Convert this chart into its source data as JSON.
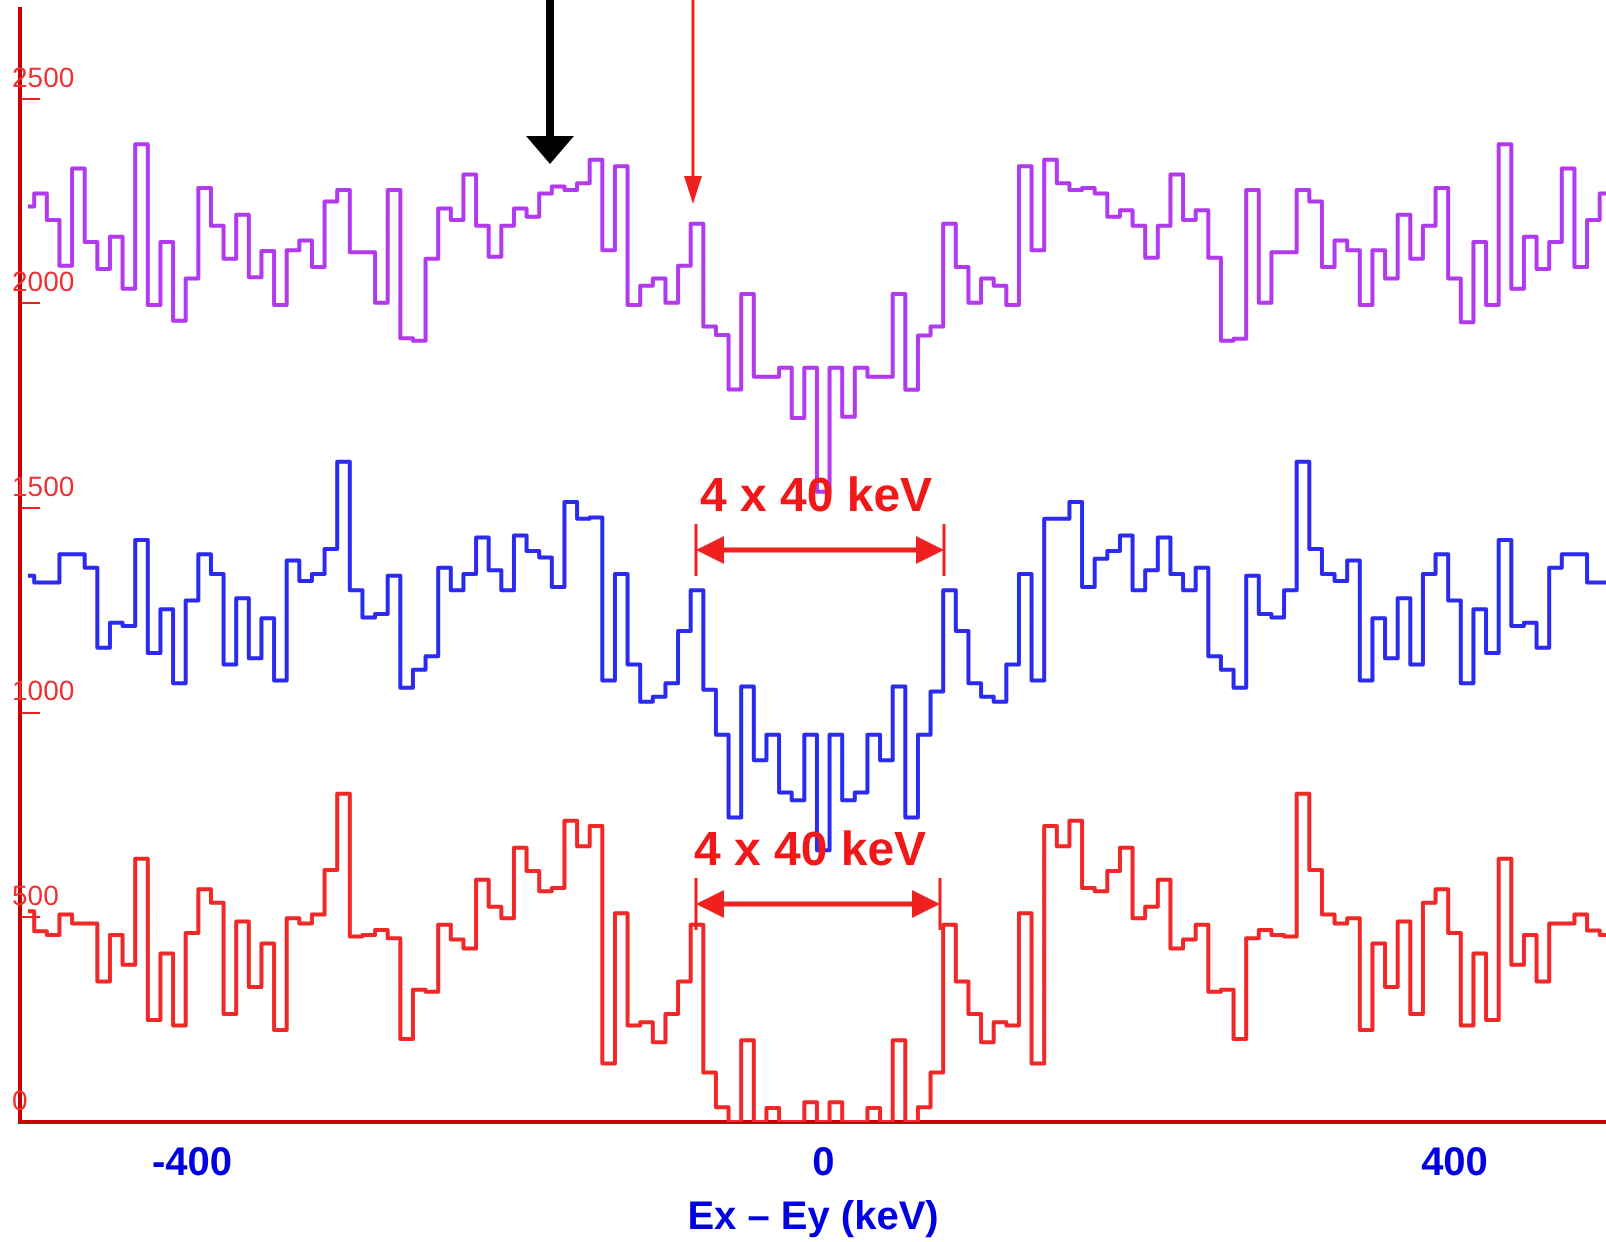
{
  "chart_data": {
    "type": "step",
    "xlabel": "Ex – Ey (keV)",
    "x": [
      -504,
      -496,
      -488,
      -480,
      -472,
      -464,
      -456,
      -448,
      -440,
      -432,
      -424,
      -416,
      -408,
      -400,
      -392,
      -384,
      -376,
      -368,
      -360,
      -352,
      -344,
      -336,
      -328,
      -320,
      -312,
      -304,
      -296,
      -288,
      -280,
      -272,
      -264,
      -256,
      -248,
      -240,
      -232,
      -224,
      -216,
      -208,
      -200,
      -192,
      -184,
      -176,
      -168,
      -160,
      -152,
      -144,
      -136,
      -128,
      -120,
      -112,
      -104,
      -96,
      -88,
      -80,
      -72,
      -64,
      -56,
      -48,
      -40,
      -32,
      -24,
      -16,
      -8,
      0,
      8,
      16,
      24,
      32,
      40,
      48,
      56,
      64,
      72,
      80,
      88,
      96,
      104,
      112,
      120,
      128,
      136,
      144,
      152,
      160,
      168,
      176,
      184,
      192,
      200,
      208,
      216,
      224,
      232,
      240,
      248,
      256,
      264,
      272,
      280,
      288,
      296,
      304,
      312,
      320,
      328,
      336,
      344,
      352,
      360,
      368,
      376,
      384,
      392,
      400,
      408,
      416,
      424,
      432,
      440,
      448,
      456,
      464,
      472,
      480,
      488,
      496
    ],
    "series": [
      {
        "color": "#b23aee",
        "values": [
          2237,
          2269,
          2204,
          2092,
          2330,
          2150,
          2084,
          2163,
          2036,
          2389,
          1996,
          2150,
          1958,
          2061,
          2282,
          2190,
          2109,
          2217,
          2064,
          2128,
          1996,
          2130,
          2154,
          2089,
          2249,
          2277,
          2125,
          2125,
          2002,
          2277,
          1915,
          1909,
          2109,
          2232,
          2204,
          2315,
          2190,
          2114,
          2190,
          2232,
          2212,
          2269,
          2286,
          2277,
          2294,
          2351,
          2130,
          2335,
          1996,
          2043,
          2061,
          2002,
          2092,
          2195,
          1944,
          1923,
          1790,
          2023,
          1821,
          1821,
          1843,
          1720,
          1843,
          1540,
          1843,
          1723,
          1843,
          1821,
          1821,
          2023,
          1789,
          1922,
          1944,
          2195,
          2089,
          2002,
          2061,
          2043,
          1996,
          2335,
          2130,
          2351,
          2294,
          2277,
          2282,
          2269,
          2212,
          2228,
          2190,
          2112,
          2190,
          2315,
          2204,
          2228,
          2112,
          1909,
          1914,
          2277,
          2002,
          2125,
          2125,
          2277,
          2249,
          2089,
          2154,
          2130,
          1996,
          2130,
          2061,
          2217,
          2109,
          2190,
          2282,
          2061,
          1954,
          2150,
          1996,
          2389,
          2036,
          2163,
          2084,
          2150,
          2330,
          2089,
          2204,
          2269
        ]
      },
      {
        "color": "#2b2bf0",
        "values": [
          1335,
          1318,
          1318,
          1387,
          1387,
          1354,
          1159,
          1220,
          1212,
          1422,
          1146,
          1253,
          1072,
          1274,
          1387,
          1339,
          1118,
          1280,
          1133,
          1231,
          1079,
          1372,
          1322,
          1339,
          1400,
          1613,
          1299,
          1233,
          1241,
          1335,
          1061,
          1105,
          1138,
          1354,
          1299,
          1339,
          1428,
          1348,
          1299,
          1433,
          1395,
          1379,
          1307,
          1515,
          1474,
          1477,
          1079,
          1339,
          1118,
          1027,
          1039,
          1072,
          1200,
          1299,
          1056,
          946,
          744,
          1064,
          884,
          946,
          805,
          786,
          946,
          664,
          946,
          786,
          805,
          946,
          884,
          1064,
          744,
          946,
          1052,
          1299,
          1200,
          1072,
          1039,
          1027,
          1118,
          1339,
          1079,
          1474,
          1474,
          1515,
          1307,
          1376,
          1395,
          1433,
          1299,
          1348,
          1428,
          1339,
          1299,
          1354,
          1138,
          1105,
          1061,
          1335,
          1241,
          1233,
          1299,
          1613,
          1400,
          1339,
          1322,
          1372,
          1079,
          1231,
          1133,
          1280,
          1118,
          1339,
          1387,
          1274,
          1072,
          1253,
          1146,
          1422,
          1212,
          1220,
          1159,
          1354,
          1387,
          1387,
          1318,
          1318
        ]
      },
      {
        "color": "#f02828",
        "values": [
          515,
          466,
          457,
          507,
          485,
          485,
          343,
          457,
          384,
          643,
          249,
          412,
          236,
          462,
          569,
          536,
          264,
          490,
          330,
          436,
          225,
          498,
          485,
          507,
          616,
          802,
          453,
          457,
          469,
          449,
          203,
          323,
          318,
          482,
          446,
          424,
          592,
          526,
          498,
          670,
          613,
          564,
          572,
          736,
          674,
          723,
          143,
          510,
          236,
          244,
          195,
          264,
          343,
          482,
          121,
          36,
          0,
          200,
          0,
          34,
          0,
          0,
          48,
          0,
          48,
          0,
          0,
          34,
          0,
          200,
          0,
          36,
          121,
          482,
          343,
          264,
          195,
          244,
          236,
          510,
          143,
          723,
          674,
          736,
          572,
          564,
          613,
          670,
          498,
          526,
          592,
          424,
          446,
          482,
          318,
          323,
          203,
          449,
          469,
          457,
          453,
          802,
          616,
          507,
          485,
          498,
          225,
          436,
          330,
          490,
          264,
          536,
          569,
          462,
          236,
          412,
          249,
          643,
          384,
          457,
          343,
          485,
          485,
          507,
          468,
          457
        ]
      }
    ],
    "xlim": [
      -509,
      496
    ],
    "xticks": [
      -400,
      0,
      400
    ],
    "ylim": [
      0,
      2720
    ],
    "yticks": [
      0,
      500,
      1000,
      1500,
      2000,
      2500
    ],
    "grid": false,
    "legend": false,
    "marker": "none",
    "line_style": "solid",
    "annotations": [
      "4 x 40 keV",
      "4 x 40 keV"
    ]
  }
}
